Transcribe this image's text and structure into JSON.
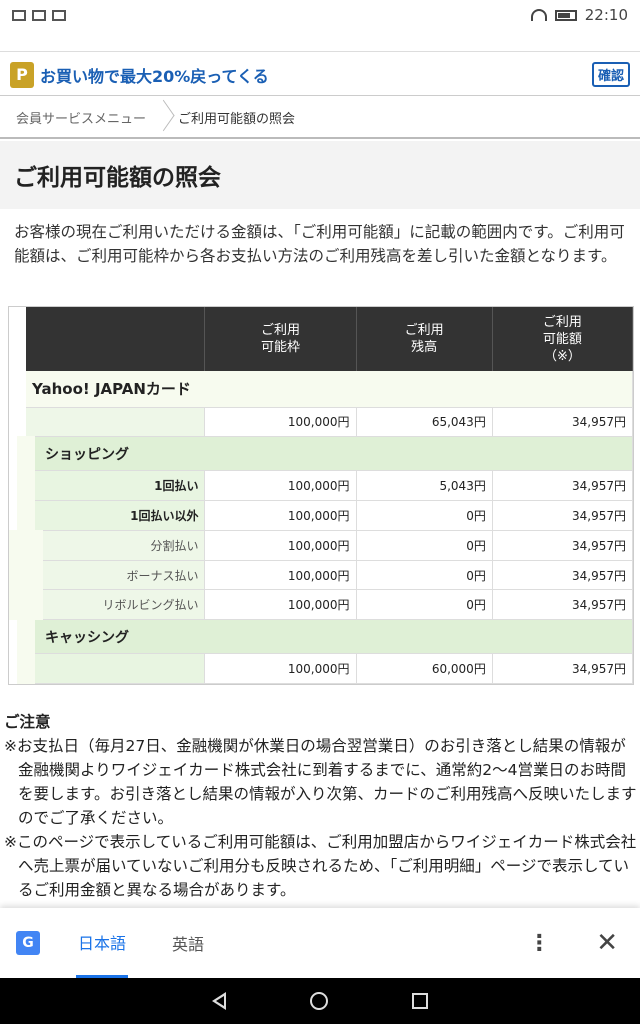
{
  "status": {
    "time": "22:10"
  },
  "promo": {
    "icon_letter": "P",
    "text": "お買い物で最大20%戻ってくる",
    "confirm": "確認"
  },
  "breadcrumb": {
    "parent": "会員サービスメニュー",
    "current": "ご利用可能額の照会"
  },
  "page_title": "ご利用可能額の照会",
  "description": "お客様の現在ご利用いただける金額は、「ご利用可能額」に記載の範囲内です。ご利用可能額は、ご利用可能枠から各お支払い方法のご利用残高を差し引いた金額となります。",
  "table": {
    "headers": {
      "limit": "ご利用\n可能枠",
      "balance": "ご利用\n残高",
      "available": "ご利用\n可能額\n（※）"
    },
    "card_name": "Yahoo! JAPANカード",
    "card_row": {
      "limit": "100,000円",
      "balance": "65,043円",
      "available": "34,957円"
    },
    "shopping_label": "ショッピング",
    "shopping_rows": [
      {
        "label": "1回払い",
        "limit": "100,000円",
        "balance": "5,043円",
        "available": "34,957円"
      },
      {
        "label": "1回払い以外",
        "limit": "100,000円",
        "balance": "0円",
        "available": "34,957円"
      },
      {
        "label": "分割払い",
        "limit": "100,000円",
        "balance": "0円",
        "available": "34,957円"
      },
      {
        "label": "ボーナス払い",
        "limit": "100,000円",
        "balance": "0円",
        "available": "34,957円"
      },
      {
        "label": "リボルビング払い",
        "limit": "100,000円",
        "balance": "0円",
        "available": "34,957円"
      }
    ],
    "cashing_label": "キャッシング",
    "cashing_row": {
      "limit": "100,000円",
      "balance": "60,000円",
      "available": "34,957円"
    }
  },
  "notes": {
    "heading": "ご注意",
    "items": [
      "※お支払日（毎月27日、金融機関が休業日の場合翌営業日）のお引き落とし結果の情報が金融機関よりワイジェイカード株式会社に到着するまでに、通常約2〜4営業日のお時間を要します。お引き落とし結果の情報が入り次第、カードのご利用残高へ反映いたしますのでご了承ください。",
      "※このページで表示しているご利用可能額は、ご利用加盟店からワイジェイカード株式会社へ売上票が届いていないご利用分も反映されるため、「ご利用明細」ページで表示しているご利用金額と異なる場合があります。"
    ]
  },
  "translate": {
    "icon_letter": "G",
    "lang_from": "日本語",
    "lang_to": "英語",
    "more": "⋮",
    "close": "✕"
  }
}
